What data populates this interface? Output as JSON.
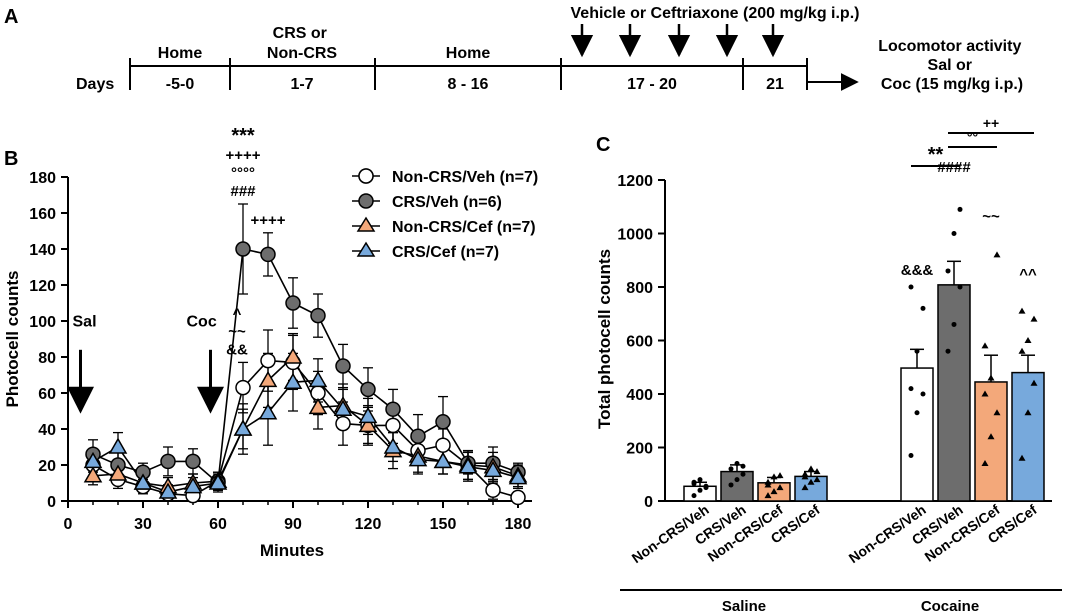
{
  "panel_a": {
    "label": "A",
    "days_label": "Days",
    "phases": [
      {
        "top": "Home",
        "days": "-5-0"
      },
      {
        "top": "CRS or\nNon-CRS",
        "days": "1-7"
      },
      {
        "top": "Home",
        "days": "8 - 16"
      },
      {
        "top": "",
        "days": "17 - 20"
      },
      {
        "top": "",
        "days": "21"
      }
    ],
    "treatment_label": "Vehicle or Ceftriaxone (200 mg/kg i.p.)",
    "test_label": "Locomotor activity\nSal or\nCoc (15 mg/kg i.p.)"
  },
  "chart_data": [
    {
      "type": "line",
      "panel_label": "B",
      "xlabel": "Minutes",
      "ylabel": "Photocell counts",
      "xlim": [
        0,
        185
      ],
      "ylim": [
        0,
        180
      ],
      "xticks": [
        0,
        30,
        60,
        90,
        120,
        150,
        180
      ],
      "yticks": [
        0,
        20,
        40,
        60,
        80,
        100,
        120,
        140,
        160,
        180
      ],
      "legend_position": "top-right",
      "colors": {
        "nonCrsVeh": "#ffffff",
        "crsVeh": "#6d6d6d",
        "nonCrsCef": "#f3a87a",
        "crsCef": "#77a9dc"
      },
      "x": [
        10,
        20,
        30,
        40,
        50,
        60,
        70,
        80,
        90,
        100,
        110,
        120,
        130,
        140,
        150,
        160,
        170,
        180
      ],
      "series": [
        {
          "name": "Non-CRS/Veh (n=7)",
          "marker": "circle",
          "fill": "#ffffff",
          "values": [
            20,
            12,
            8,
            4,
            3,
            11,
            63,
            78,
            77,
            60,
            43,
            42,
            42,
            28,
            31,
            20,
            6,
            2
          ],
          "errors": [
            6,
            5,
            4,
            3,
            3,
            5,
            14,
            17,
            15,
            12,
            12,
            10,
            10,
            8,
            9,
            8,
            5,
            3
          ]
        },
        {
          "name": "CRS/Veh (n=6)",
          "marker": "circle",
          "fill": "#6d6d6d",
          "values": [
            26,
            20,
            16,
            22,
            22,
            10,
            140,
            137,
            110,
            103,
            75,
            62,
            51,
            36,
            44,
            21,
            21,
            16
          ],
          "errors": [
            8,
            7,
            5,
            8,
            7,
            4,
            25,
            12,
            14,
            12,
            12,
            12,
            11,
            12,
            14,
            6,
            9,
            5
          ]
        },
        {
          "name": "Non-CRS/Cef (n=7)",
          "marker": "triangle",
          "fill": "#f3a87a",
          "values": [
            14,
            15,
            10,
            8,
            10,
            11,
            40,
            67,
            80,
            52,
            53,
            42,
            28,
            25,
            22,
            20,
            19,
            14
          ],
          "errors": [
            5,
            5,
            4,
            5,
            5,
            5,
            11,
            15,
            13,
            12,
            12,
            11,
            10,
            9,
            7,
            8,
            8,
            6
          ]
        },
        {
          "name": "CRS/Cef (n=7)",
          "marker": "triangle",
          "fill": "#77a9dc",
          "values": [
            22,
            30,
            10,
            5,
            8,
            10,
            40,
            49,
            66,
            67,
            51,
            47,
            30,
            23,
            22,
            19,
            17,
            13
          ],
          "errors": [
            6,
            8,
            5,
            4,
            5,
            5,
            14,
            18,
            16,
            12,
            11,
            10,
            8,
            8,
            7,
            8,
            7,
            6
          ]
        }
      ],
      "annotations": [
        {
          "x": 70,
          "y": 165,
          "lines": [
            "###",
            "°°°°",
            "++++",
            "***"
          ]
        },
        {
          "x": 80,
          "y": 149,
          "lines": [
            "++++"
          ]
        },
        {
          "x": 70,
          "y": 77,
          "lines": [
            "&&",
            "~~",
            "^"
          ]
        }
      ],
      "arrows": [
        {
          "label": "Sal",
          "x": 5
        },
        {
          "label": "Coc",
          "x": 57
        }
      ]
    },
    {
      "type": "bar",
      "panel_label": "C",
      "ylabel": "Total photocell counts",
      "ylim": [
        0,
        1200
      ],
      "yticks": [
        0,
        200,
        400,
        600,
        800,
        1000,
        1200
      ],
      "groups": [
        "Saline",
        "Cocaine"
      ],
      "categories": [
        "Non-CRS/Veh",
        "CRS/Veh",
        "Non-CRS/Cef",
        "CRS/Cef"
      ],
      "colors": {
        "nonCrsVeh": "#ffffff",
        "crsVeh": "#6d6d6d",
        "nonCrsCef": "#f3a87a",
        "crsCef": "#77a9dc"
      },
      "series": [
        {
          "name": "Saline",
          "values": [
            55,
            110,
            68,
            92
          ],
          "errors": [
            15,
            25,
            20,
            18
          ],
          "points": [
            [
              20,
              40,
              55,
              65,
              80,
              50,
              70
            ],
            [
              60,
              80,
              100,
              120,
              140,
              130
            ],
            [
              20,
              35,
              50,
              70,
              90,
              95,
              60
            ],
            [
              50,
              70,
              80,
              100,
              120,
              110,
              90
            ]
          ]
        },
        {
          "name": "Cocaine",
          "values": [
            497,
            808,
            445,
            480
          ],
          "errors": [
            70,
            88,
            100,
            65
          ],
          "points": [
            [
              170,
              330,
              400,
              420,
              560,
              720,
              800
            ],
            [
              560,
              660,
              800,
              860,
              1000,
              1090
            ],
            [
              140,
              240,
              330,
              400,
              460,
              920,
              580
            ],
            [
              160,
              330,
              440,
              560,
              600,
              680,
              710
            ]
          ]
        }
      ],
      "point_marker": [
        "circle",
        "circle",
        "triangle",
        "triangle"
      ],
      "annotations": [
        {
          "label": "&&&",
          "group": 1,
          "bar": 0,
          "value": 845
        },
        {
          "label": "####",
          "group": 1,
          "bar": 1,
          "value": 1230
        },
        {
          "label": "~~",
          "group": 1,
          "bar": 2,
          "value": 1045
        },
        {
          "label": "^^",
          "group": 1,
          "bar": 3,
          "value": 830
        }
      ],
      "brackets": [
        {
          "label": "**",
          "from": 0,
          "to": 1,
          "value": 1490
        },
        {
          "label": "°°",
          "from": 1,
          "to": 2,
          "value": 1570
        },
        {
          "label": "++",
          "from": 1,
          "to": 3,
          "value": 1650
        }
      ]
    }
  ]
}
